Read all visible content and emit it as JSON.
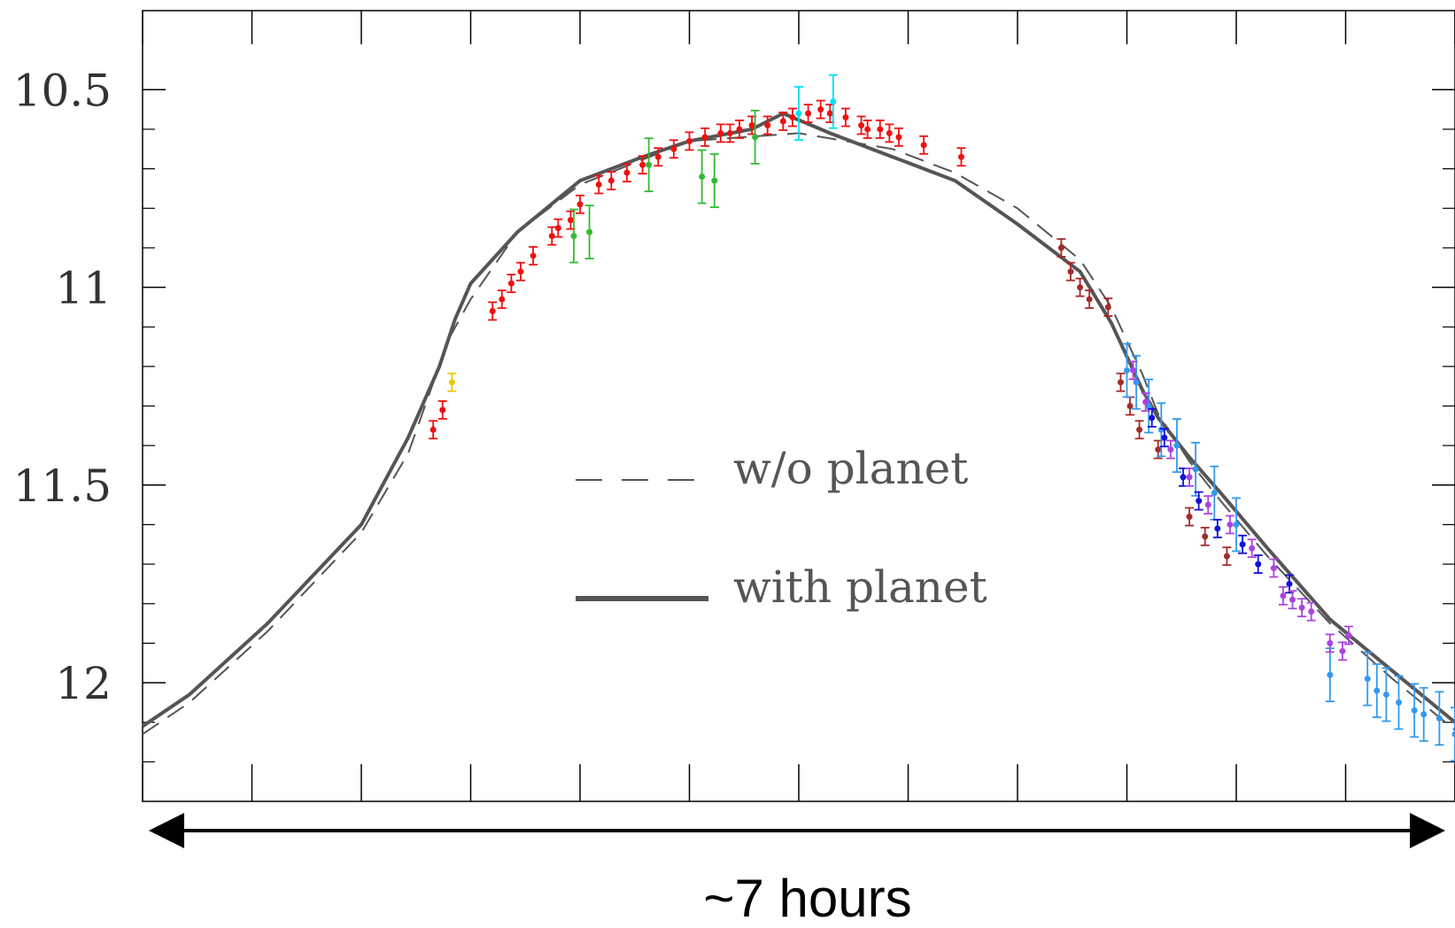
{
  "chart_data": {
    "type": "scatter",
    "title": "",
    "xlabel": "",
    "ylabel": "",
    "y_inverted": true,
    "ylim": [
      12.3,
      10.3
    ],
    "xlim": [
      0,
      420
    ],
    "x_units": "minutes",
    "grid": false,
    "yticks": [
      {
        "value": 10.5,
        "label": "10.5"
      },
      {
        "value": 11,
        "label": "11"
      },
      {
        "value": 11.5,
        "label": "11.5"
      },
      {
        "value": 12,
        "label": "12"
      }
    ],
    "yticks_minor": [
      10.6,
      10.7,
      10.8,
      10.9,
      11.1,
      11.2,
      11.3,
      11.4,
      11.6,
      11.7,
      11.8,
      11.9,
      12.1,
      12.2
    ],
    "xticks": [
      0,
      35,
      70,
      105,
      140,
      175,
      210,
      245,
      280,
      315,
      350,
      385,
      420
    ],
    "legend": {
      "placement": "center-right",
      "entries": [
        {
          "label": "w/o planet",
          "style": "dashed",
          "color": "#555555"
        },
        {
          "label": "with planet",
          "style": "solid",
          "color": "#555555"
        }
      ]
    },
    "duration_annotation": "~7 hours",
    "series": [
      {
        "style": "dashed",
        "color": "#555555",
        "x": [
          0,
          15,
          40,
          70,
          85,
          98,
          105,
          120,
          140,
          175,
          210,
          240,
          260,
          280,
          300,
          310,
          320,
          325,
          335,
          345,
          360,
          380,
          400,
          420
        ],
        "y": [
          12.13,
          12.05,
          11.87,
          11.62,
          11.42,
          11.13,
          11.03,
          10.86,
          10.74,
          10.63,
          10.61,
          10.65,
          10.71,
          10.8,
          10.93,
          11.05,
          11.22,
          11.32,
          11.44,
          11.54,
          11.68,
          11.85,
          11.99,
          12.12
        ]
      },
      {
        "style": "solid",
        "color": "#555555",
        "x": [
          0,
          15,
          40,
          70,
          85,
          95,
          100,
          105,
          120,
          140,
          160,
          175,
          195,
          205,
          220,
          240,
          260,
          280,
          300,
          310,
          320,
          325,
          335,
          345,
          360,
          380,
          400,
          420
        ],
        "y": [
          12.11,
          12.03,
          11.85,
          11.6,
          11.38,
          11.2,
          11.08,
          10.99,
          10.86,
          10.73,
          10.67,
          10.63,
          10.6,
          10.56,
          10.61,
          10.67,
          10.73,
          10.84,
          10.96,
          11.09,
          11.26,
          11.33,
          11.43,
          11.52,
          11.66,
          11.84,
          11.97,
          12.1
        ]
      }
    ],
    "observations": [
      {
        "name": "red",
        "color": "#ee1111",
        "x": [
          93,
          96,
          112,
          115,
          118,
          121,
          125,
          131,
          133,
          137,
          140,
          146,
          150,
          155,
          160,
          165,
          170,
          175,
          180,
          185,
          188,
          191,
          195,
          200,
          205,
          208,
          213,
          217,
          220,
          225,
          230,
          232,
          236,
          239,
          242,
          250,
          262
        ],
        "y": [
          11.36,
          11.31,
          11.06,
          11.03,
          10.99,
          10.96,
          10.92,
          10.87,
          10.85,
          10.83,
          10.79,
          10.74,
          10.73,
          10.71,
          10.69,
          10.67,
          10.65,
          10.63,
          10.62,
          10.61,
          10.61,
          10.6,
          10.59,
          10.59,
          10.58,
          10.57,
          10.56,
          10.55,
          10.56,
          10.57,
          10.59,
          10.6,
          10.6,
          10.61,
          10.62,
          10.64,
          10.67
        ]
      },
      {
        "name": "green",
        "color": "#33bb33",
        "x": [
          138,
          143,
          162,
          179,
          183,
          196
        ],
        "y": [
          10.87,
          10.86,
          10.69,
          10.72,
          10.73,
          10.62
        ]
      },
      {
        "name": "cyan",
        "color": "#00e0f0",
        "x": [
          210,
          221
        ],
        "y": [
          10.56,
          10.53
        ]
      },
      {
        "name": "yellow",
        "color": "#e8c800",
        "x": [
          99
        ],
        "y": [
          11.24
        ]
      },
      {
        "name": "brown",
        "color": "#a52a2a",
        "x": [
          294,
          297,
          300,
          303,
          309,
          313,
          316,
          319,
          325,
          335,
          340,
          347
        ],
        "y": [
          10.9,
          10.96,
          11.0,
          11.03,
          11.05,
          11.24,
          11.3,
          11.36,
          11.41,
          11.58,
          11.63,
          11.68
        ]
      },
      {
        "name": "light-blue",
        "color": "#3399ee",
        "x": [
          315,
          318,
          322,
          326,
          331,
          337,
          343,
          350,
          380,
          392,
          395,
          398,
          402,
          407,
          410,
          415,
          420
        ],
        "y": [
          11.21,
          11.24,
          11.3,
          11.36,
          11.4,
          11.46,
          11.52,
          11.6,
          11.98,
          11.99,
          12.02,
          12.03,
          12.05,
          12.07,
          12.08,
          12.09,
          12.13
        ]
      },
      {
        "name": "blue",
        "color": "#1111dd",
        "x": [
          323,
          327,
          333,
          338,
          344,
          352,
          357,
          367
        ],
        "y": [
          11.33,
          11.38,
          11.48,
          11.54,
          11.61,
          11.65,
          11.7,
          11.75
        ]
      },
      {
        "name": "purple",
        "color": "#aa44dd",
        "x": [
          317,
          321,
          329,
          335,
          341,
          348,
          355,
          362,
          365,
          368,
          371,
          374,
          380,
          384,
          386
        ],
        "y": [
          11.21,
          11.29,
          11.41,
          11.48,
          11.55,
          11.6,
          11.66,
          11.71,
          11.78,
          11.79,
          11.81,
          11.82,
          11.9,
          11.92,
          11.88
        ]
      }
    ]
  }
}
